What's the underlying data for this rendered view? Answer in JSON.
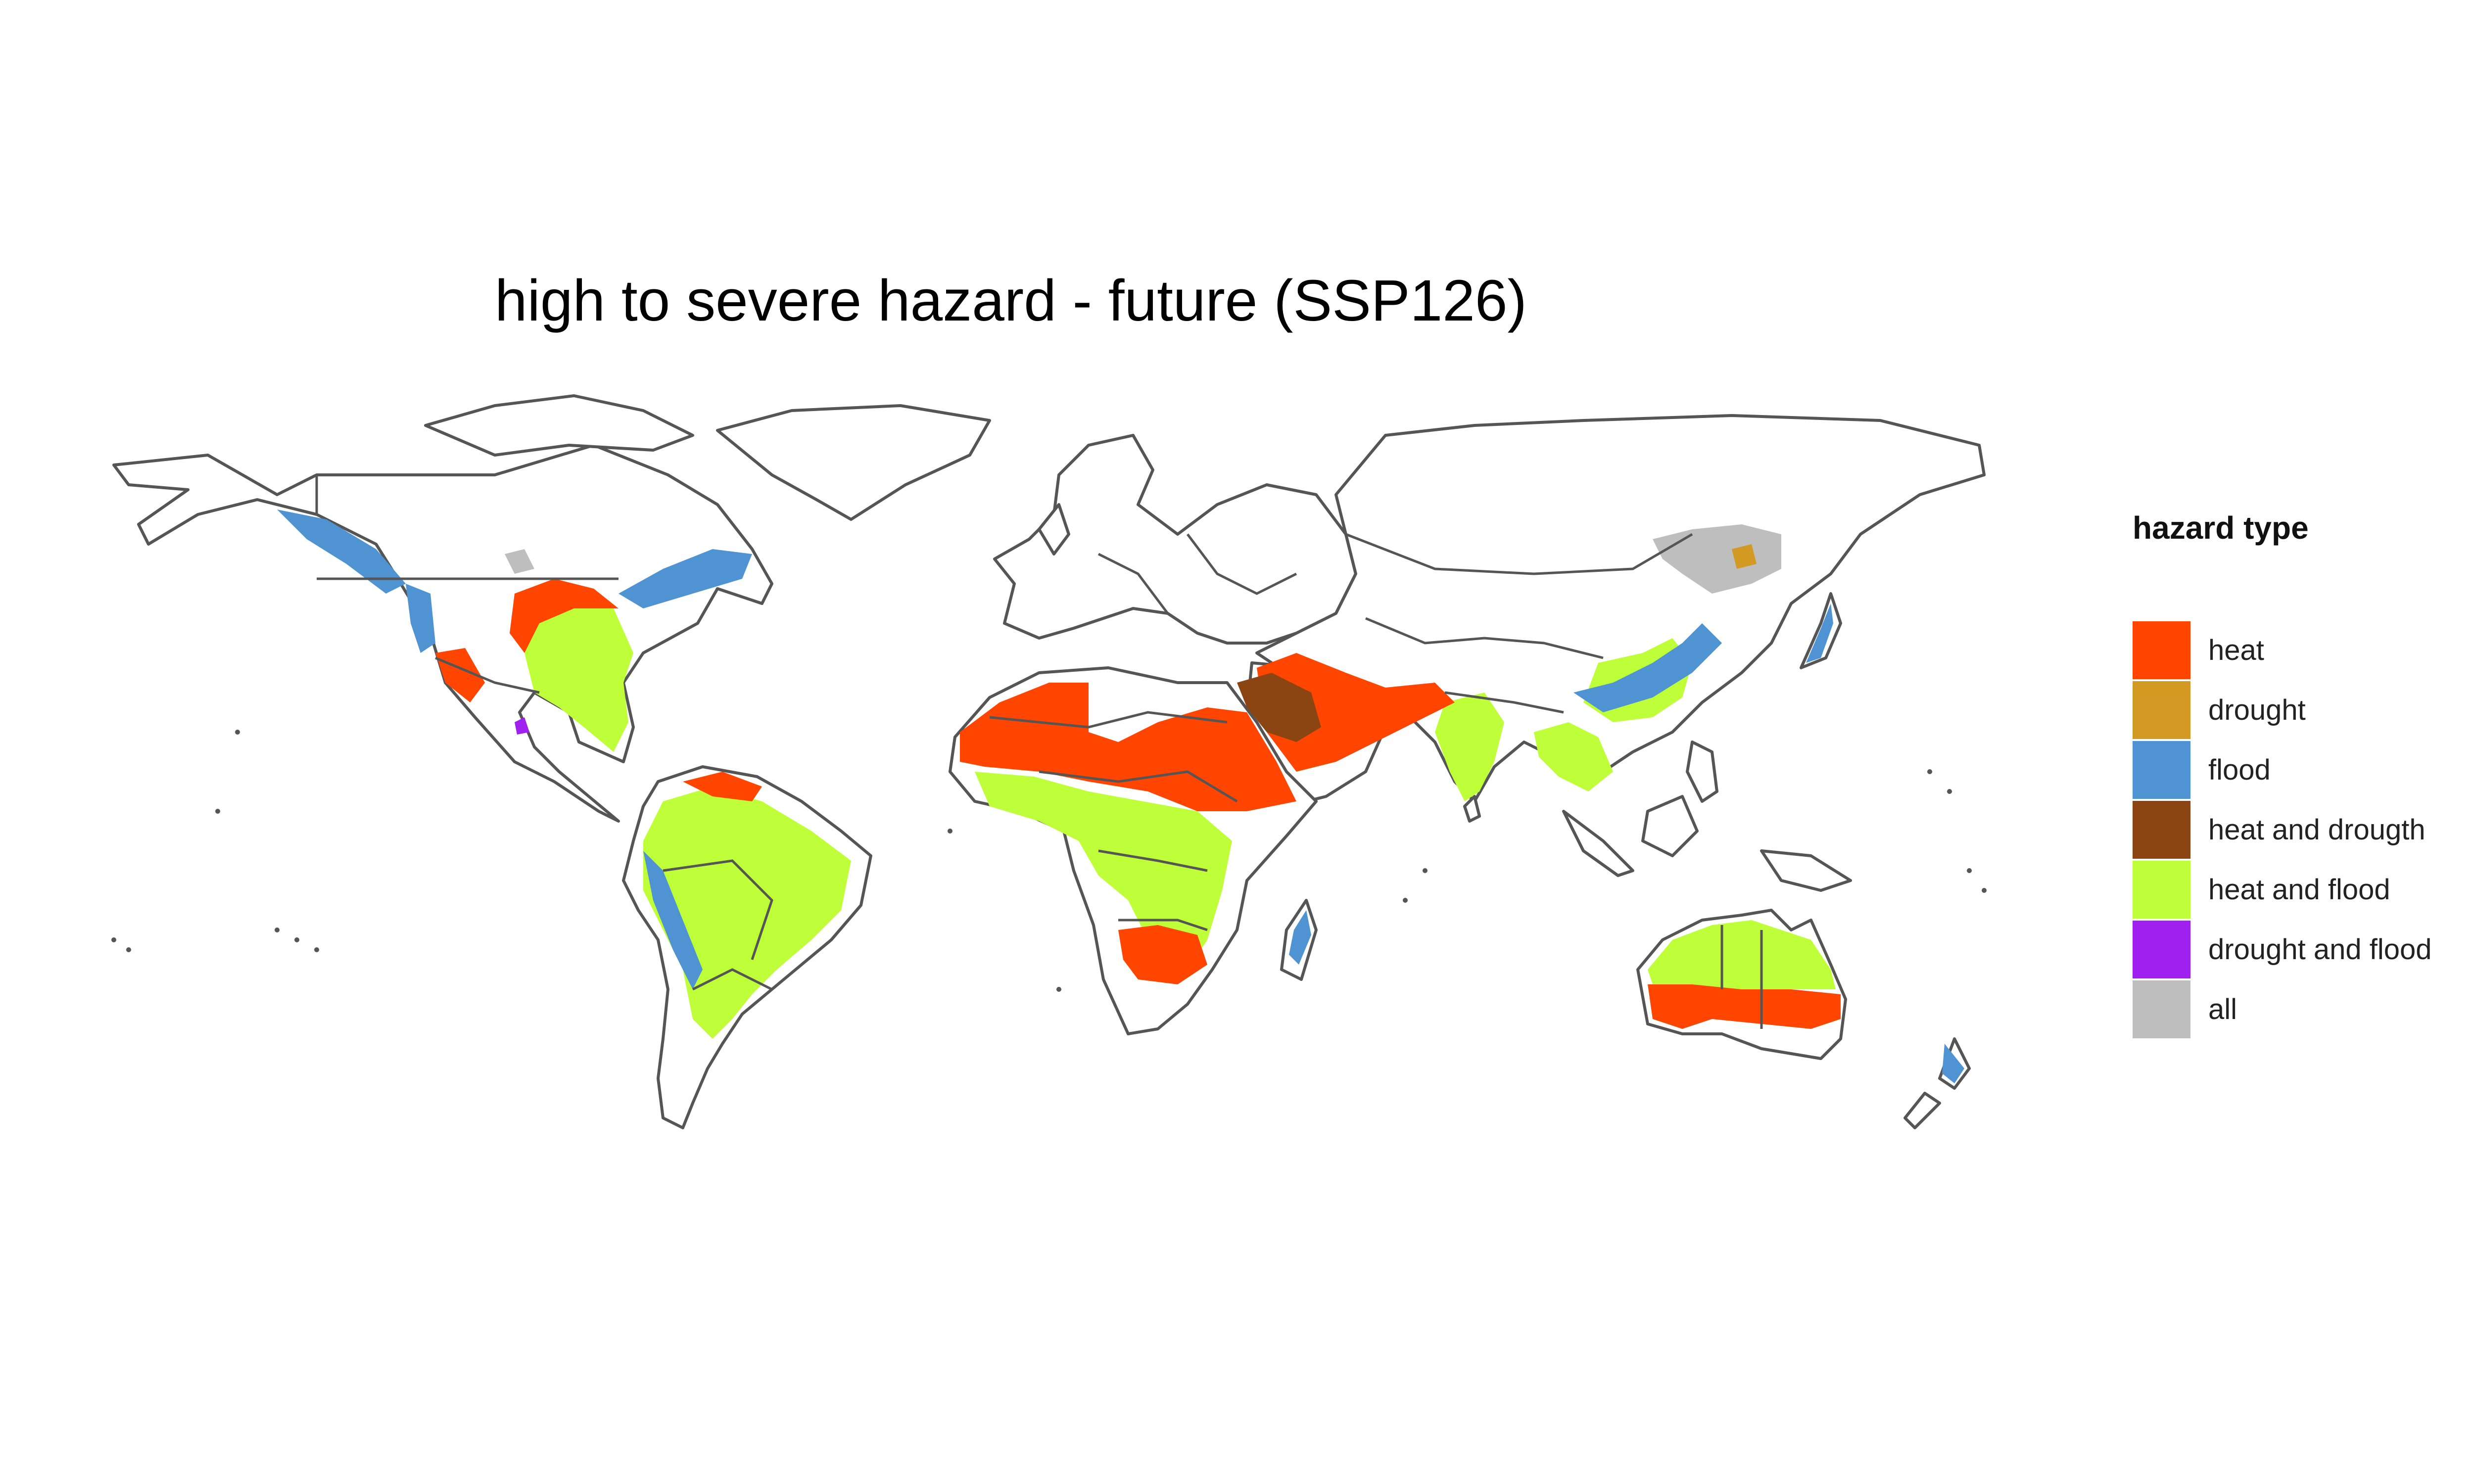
{
  "map": {
    "title": "high to severe hazard - future (SSP126)",
    "projection": "equirectangular world",
    "base_fill": "#ffffff",
    "outline_color": "#555555"
  },
  "legend": {
    "title": "hazard type",
    "items": [
      {
        "label": "heat",
        "color": "#FF4500"
      },
      {
        "label": "drought",
        "color": "#D29A22"
      },
      {
        "label": "flood",
        "color": "#4F93D2"
      },
      {
        "label": "heat and drougth",
        "color": "#8B4513"
      },
      {
        "label": "heat and flood",
        "color": "#BFFF3A"
      },
      {
        "label": "drought and flood",
        "color": "#A020F0"
      },
      {
        "label": "all",
        "color": "#BEBEBE"
      }
    ]
  }
}
